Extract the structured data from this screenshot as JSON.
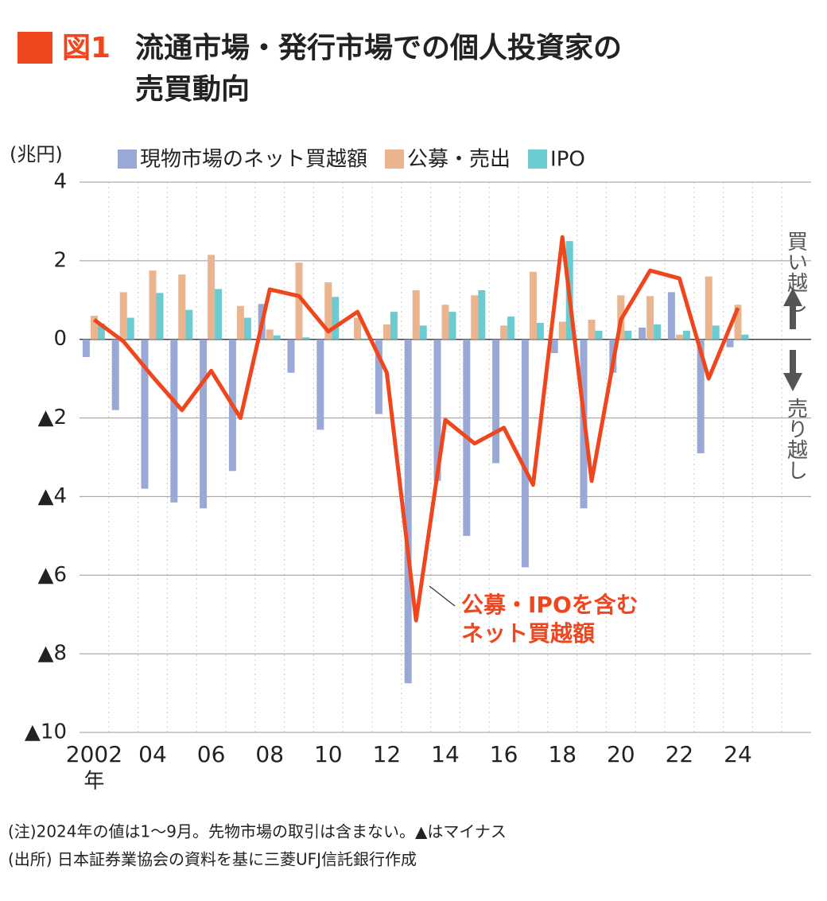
{
  "chart_data": {
    "type": "bar",
    "figure_label": "図1",
    "title_lines": [
      "流通市場・発行市場での個人投資家の",
      "売買動向"
    ],
    "y_unit": "(兆円)",
    "x_label": "年",
    "categories": [
      "2002",
      null,
      "04",
      null,
      "06",
      null,
      "08",
      null,
      "10",
      null,
      "12",
      null,
      "14",
      null,
      "16",
      null,
      "18",
      null,
      "20",
      null,
      "22",
      null,
      "24"
    ],
    "series": [
      {
        "name": "現物市場のネット買越額",
        "type": "bar",
        "color": "#9aa8d6",
        "values": [
          -0.45,
          -1.8,
          -3.8,
          -4.15,
          -4.3,
          -3.35,
          0.9,
          -0.85,
          -2.3,
          0,
          -1.9,
          -8.75,
          -3.6,
          -5.0,
          -3.15,
          -5.8,
          -0.35,
          -4.3,
          -0.85,
          0.3,
          1.2,
          -2.9,
          -0.2
        ]
      },
      {
        "name": "公募・売出",
        "type": "bar",
        "color": "#e9b48e",
        "values": [
          0.6,
          1.2,
          1.75,
          1.65,
          2.15,
          0.85,
          0.25,
          1.95,
          1.45,
          0.55,
          0.38,
          1.25,
          0.88,
          1.12,
          0.35,
          1.72,
          0.45,
          0.5,
          1.12,
          1.1,
          0.12,
          1.6,
          0.88
        ]
      },
      {
        "name": "IPO",
        "type": "bar",
        "color": "#6ccbd0",
        "values": [
          0.4,
          0.55,
          1.18,
          0.75,
          1.28,
          0.55,
          0.1,
          0.05,
          1.08,
          0.02,
          0.7,
          0.35,
          0.7,
          1.25,
          0.58,
          0.42,
          2.5,
          0.22,
          0.22,
          0.38,
          0.22,
          0.35,
          0.12
        ]
      },
      {
        "name": "公募・IPOを含むネット買越額",
        "type": "line",
        "color": "#f0461e",
        "label_lines": [
          "公募・IPOを含む",
          "ネット買越額"
        ],
        "values": [
          0.5,
          -0.05,
          -0.95,
          -1.8,
          -0.8,
          -2.0,
          1.27,
          1.1,
          0.2,
          0.7,
          -0.85,
          -7.15,
          -2.05,
          -2.65,
          -2.25,
          -3.7,
          2.6,
          -3.6,
          0.5,
          1.75,
          1.55,
          -1.0,
          0.8
        ]
      }
    ],
    "ylim": [
      -10,
      4
    ],
    "yticks": [
      {
        "value": -10,
        "label": "▲10"
      },
      {
        "value": -8,
        "label": "▲8"
      },
      {
        "value": -6,
        "label": "▲6"
      },
      {
        "value": -4,
        "label": "▲4"
      },
      {
        "value": -2,
        "label": "▲2"
      },
      0,
      2,
      4
    ],
    "grid": true,
    "side_labels": {
      "up": "買い越し",
      "down": "売り越し"
    },
    "notes": [
      "(注)2024年の値は1～9月。先物市場の取引は含まない。▲はマイナス",
      "(出所) 日本証券業協会の資料を基に三菱UFJ信託銀行作成"
    ]
  }
}
